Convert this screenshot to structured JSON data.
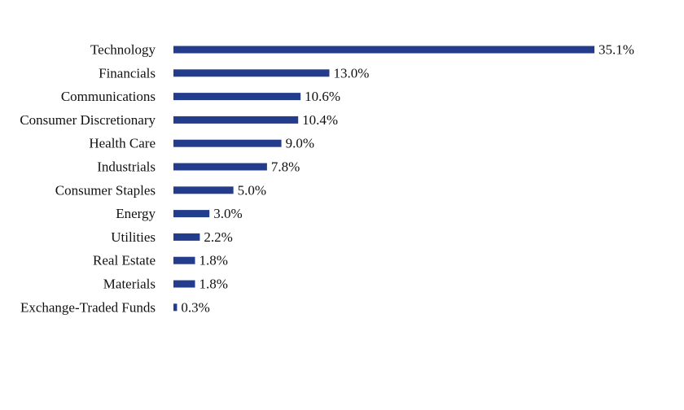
{
  "chart_data": {
    "type": "bar",
    "orientation": "horizontal",
    "categories": [
      "Technology",
      "Financials",
      "Communications",
      "Consumer Discretionary",
      "Health Care",
      "Industrials",
      "Consumer Staples",
      "Energy",
      "Utilities",
      "Real Estate",
      "Materials",
      "Exchange-Traded Funds"
    ],
    "values": [
      35.1,
      13.0,
      10.6,
      10.4,
      9.0,
      7.8,
      5.0,
      3.0,
      2.2,
      1.8,
      1.8,
      0.3
    ],
    "labels": [
      "35.1%",
      "13.0%",
      "10.6%",
      "10.4%",
      "9.0%",
      "7.8%",
      "5.0%",
      "3.0%",
      "2.2%",
      "1.8%",
      "1.8%",
      "0.3%"
    ],
    "unit": "%",
    "title": "",
    "xlabel": "",
    "ylabel": "",
    "xlim": [
      0,
      35.1
    ],
    "grid": false,
    "legend": "none",
    "bar_color": "#233d8c"
  }
}
